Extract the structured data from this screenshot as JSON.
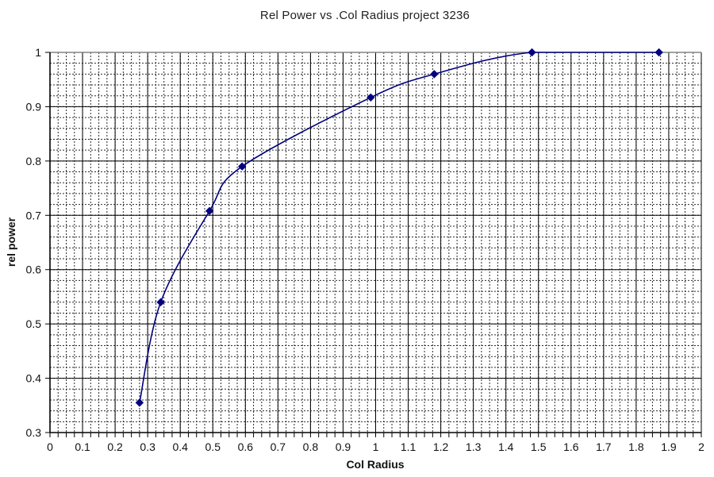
{
  "chart_data": {
    "type": "line",
    "title": "Rel Power vs .Col Radius project 3236",
    "xlabel": "Col Radius",
    "ylabel": "rel power",
    "xlim": [
      0,
      2
    ],
    "ylim": [
      0.3,
      1
    ],
    "x_major_unit": 0.1,
    "x_minor_unit": 0.025,
    "y_major_unit": 0.1,
    "y_minor_unit": 0.02,
    "grid": "major and minor, both x and y",
    "legend": "none",
    "x_tick_values": [
      0,
      0.1,
      0.2,
      0.3,
      0.4,
      0.5,
      0.6,
      0.7,
      0.8,
      0.9,
      1,
      1.1,
      1.2,
      1.3,
      1.4,
      1.5,
      1.6,
      1.7,
      1.8,
      1.9,
      2
    ],
    "x_tick_labels": [
      "0",
      "0.1",
      "0.2",
      "0.3",
      "0.4",
      "0.5",
      "0.6",
      "0.7",
      "0.8",
      "0.9",
      "1",
      "1.1",
      "1.2",
      "1.3",
      "1.4",
      "1.5",
      "1.6",
      "1.7",
      "1.8",
      "1.9",
      "2"
    ],
    "y_tick_values": [
      0.3,
      0.4,
      0.5,
      0.6,
      0.7,
      0.8,
      0.9,
      1
    ],
    "y_tick_labels": [
      "0.3",
      "0.4",
      "0.5",
      "0.6",
      "0.7",
      "0.8",
      "0.9",
      "1"
    ],
    "series": [
      {
        "name": "rel power",
        "marker": "diamond",
        "smooth": true,
        "points": [
          {
            "x": 0.275,
            "y": 0.355
          },
          {
            "x": 0.34,
            "y": 0.54
          },
          {
            "x": 0.49,
            "y": 0.708
          },
          {
            "x": 0.59,
            "y": 0.79
          },
          {
            "x": 0.985,
            "y": 0.917
          },
          {
            "x": 1.18,
            "y": 0.96
          },
          {
            "x": 1.48,
            "y": 1.0
          },
          {
            "x": 1.87,
            "y": 1.0
          }
        ]
      }
    ],
    "colors": {
      "line": "#000080",
      "marker": "#000080",
      "grid_major": "#000000",
      "grid_minor": "#2a2a2a",
      "axis": "#000000",
      "plot_border_top": "#848484",
      "text": "#111111"
    }
  }
}
